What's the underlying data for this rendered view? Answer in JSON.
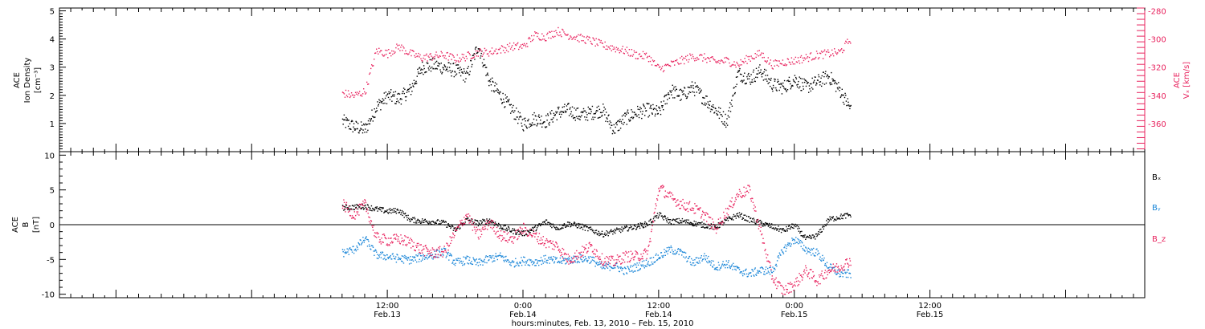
{
  "chart_data": [
    {
      "type": "scatter",
      "panel": "ion-density",
      "xlabel": "hours:minutes, Feb. 13, 2010 – Feb. 15, 2010",
      "x_range_hours": [
        -17,
        79
      ],
      "x_ticks": [
        {
          "hour": 12,
          "time": "12:00",
          "date": "Feb.13"
        },
        {
          "hour": 24,
          "time": "0:00",
          "date": "Feb.14"
        },
        {
          "hour": 36,
          "time": "12:00",
          "date": "Feb.14"
        },
        {
          "hour": 48,
          "time": "0:00",
          "date": "Feb.15"
        },
        {
          "hour": 60,
          "time": "12:00",
          "date": "Feb.15"
        }
      ],
      "left_axis": {
        "label_lines": [
          "ACE",
          "Ion Density",
          "[cm⁻³]"
        ],
        "ylim": [
          0,
          5.1
        ],
        "ticks": [
          1,
          2,
          3,
          4,
          5
        ]
      },
      "right_axis": {
        "label_lines": [
          "ACE",
          "Vₓ [km/s]"
        ],
        "ylim": [
          -380,
          -278
        ],
        "ticks": [
          -280,
          -300,
          -320,
          -340,
          -360
        ],
        "color": "#e8245f"
      },
      "series": [
        {
          "color": "#000000",
          "axis": "left",
          "x_hours": [
            8,
            9,
            10,
            11,
            12,
            13,
            14,
            15,
            16,
            17,
            18,
            19,
            20,
            21,
            22,
            23,
            24,
            25,
            26,
            27,
            28,
            29,
            30,
            31,
            32,
            33,
            34,
            35,
            36,
            37,
            38,
            39,
            40,
            41,
            42,
            43,
            44,
            45,
            46,
            47,
            48,
            49,
            50,
            51,
            52,
            53
          ],
          "values": [
            1.1,
            0.9,
            0.8,
            1.6,
            2.0,
            1.9,
            2.2,
            3.0,
            3.1,
            3.0,
            2.9,
            2.7,
            3.8,
            2.5,
            2.0,
            1.5,
            1.0,
            1.2,
            1.1,
            1.4,
            1.5,
            1.3,
            1.4,
            1.5,
            0.8,
            1.2,
            1.4,
            1.5,
            1.4,
            2.2,
            2.0,
            2.3,
            1.9,
            1.5,
            1.1,
            2.8,
            2.6,
            2.9,
            2.4,
            2.3,
            2.6,
            2.3,
            2.5,
            2.7,
            2.2,
            1.5
          ],
          "scatter": 0.25
        },
        {
          "color": "#e8245f",
          "axis": "right",
          "x_hours": [
            8,
            9,
            10,
            11,
            12,
            13,
            14,
            15,
            16,
            17,
            18,
            19,
            20,
            21,
            22,
            23,
            24,
            25,
            26,
            27,
            28,
            29,
            30,
            31,
            32,
            33,
            34,
            35,
            36,
            37,
            38,
            39,
            40,
            41,
            42,
            43,
            44,
            45,
            46,
            47,
            48,
            49,
            50,
            51,
            52,
            53
          ],
          "values": [
            -338,
            -340,
            -337,
            -308,
            -310,
            -305,
            -310,
            -313,
            -312,
            -311,
            -314,
            -312,
            -309,
            -309,
            -307,
            -305,
            -305,
            -297,
            -298,
            -294,
            -297,
            -299,
            -301,
            -304,
            -306,
            -308,
            -311,
            -312,
            -321,
            -318,
            -315,
            -312,
            -313,
            -316,
            -315,
            -318,
            -313,
            -310,
            -318,
            -316,
            -315,
            -313,
            -311,
            -310,
            -309,
            -299
          ],
          "scatter": 3
        }
      ]
    },
    {
      "type": "scatter",
      "panel": "magnetic-field",
      "left_axis": {
        "label_lines": [
          "ACE",
          "B",
          "[nT]"
        ],
        "ylim": [
          -10.5,
          10.5
        ],
        "ticks": [
          10,
          5,
          0,
          -5,
          -10
        ]
      },
      "zero_line": true,
      "series": [
        {
          "name": "Bₓ",
          "color": "#000000",
          "x_hours": [
            8,
            9,
            10,
            11,
            12,
            13,
            14,
            15,
            16,
            17,
            18,
            19,
            20,
            21,
            22,
            23,
            24,
            25,
            26,
            27,
            28,
            29,
            30,
            31,
            32,
            33,
            34,
            35,
            36,
            37,
            38,
            39,
            40,
            41,
            42,
            43,
            44,
            45,
            46,
            47,
            48,
            49,
            50,
            51,
            52,
            53
          ],
          "values": [
            2.5,
            2.6,
            2.7,
            2.3,
            2.0,
            2.1,
            0.8,
            0.6,
            0.5,
            0.3,
            -0.7,
            0.8,
            0.3,
            0.7,
            -0.2,
            -0.8,
            -1.2,
            -0.5,
            0.5,
            -0.4,
            0.2,
            -0.1,
            -0.7,
            -1.3,
            -0.9,
            -0.5,
            -0.2,
            0.2,
            1.5,
            0.5,
            0.6,
            0.3,
            0.0,
            -0.3,
            0.7,
            1.5,
            0.8,
            0.3,
            -0.2,
            -0.8,
            0.0,
            -2.0,
            -1.5,
            0.8,
            1.2,
            1.5
          ],
          "scatter": 0.4
        },
        {
          "name": "Bᵧ",
          "color": "#1a86d8",
          "x_hours": [
            8,
            9,
            10,
            11,
            12,
            13,
            14,
            15,
            16,
            17,
            18,
            19,
            20,
            21,
            22,
            23,
            24,
            25,
            26,
            27,
            28,
            29,
            30,
            31,
            32,
            33,
            34,
            35,
            36,
            37,
            38,
            39,
            40,
            41,
            42,
            43,
            44,
            45,
            46,
            47,
            48,
            49,
            50,
            51,
            52,
            53
          ],
          "values": [
            -4.0,
            -3.5,
            -2.0,
            -4.3,
            -4.5,
            -4.8,
            -5.0,
            -4.6,
            -4.3,
            -3.8,
            -5.4,
            -5.0,
            -5.5,
            -4.8,
            -4.5,
            -5.5,
            -5.1,
            -5.3,
            -4.9,
            -5.2,
            -5.0,
            -4.8,
            -4.9,
            -6.1,
            -5.8,
            -6.6,
            -6.0,
            -5.4,
            -4.5,
            -3.5,
            -4.0,
            -5.5,
            -4.5,
            -6.0,
            -5.5,
            -6.5,
            -7.0,
            -6.5,
            -6.6,
            -3.5,
            -2.0,
            -3.5,
            -4.0,
            -6.0,
            -7.0,
            -7.0
          ],
          "scatter": 0.6
        },
        {
          "name": "B_z",
          "color": "#e8245f",
          "x_hours": [
            8,
            9,
            10,
            11,
            12,
            13,
            14,
            15,
            16,
            17,
            18,
            19,
            20,
            21,
            22,
            23,
            24,
            25,
            26,
            27,
            28,
            29,
            30,
            31,
            32,
            33,
            34,
            35,
            36,
            37,
            38,
            39,
            40,
            41,
            42,
            43,
            44,
            45,
            46,
            47,
            48,
            49,
            50,
            51,
            52,
            53
          ],
          "values": [
            3.0,
            1.5,
            3.0,
            -1.8,
            -2.2,
            -2.0,
            -2.5,
            -3.5,
            -4.0,
            -3.8,
            -1.0,
            1.5,
            -1.5,
            0.5,
            -1.5,
            -2.0,
            -0.5,
            -1.5,
            -2.5,
            -3.0,
            -5.0,
            -4.0,
            -3.0,
            -5.0,
            -5.3,
            -4.5,
            -4.5,
            -4.0,
            5.5,
            4.0,
            3.0,
            2.5,
            1.5,
            -0.5,
            2.0,
            4.5,
            5.0,
            -1.0,
            -7.5,
            -9.5,
            -8.5,
            -6.5,
            -8.0,
            -6.5,
            -6.0,
            -5.0
          ],
          "scatter": 0.8
        }
      ]
    }
  ]
}
